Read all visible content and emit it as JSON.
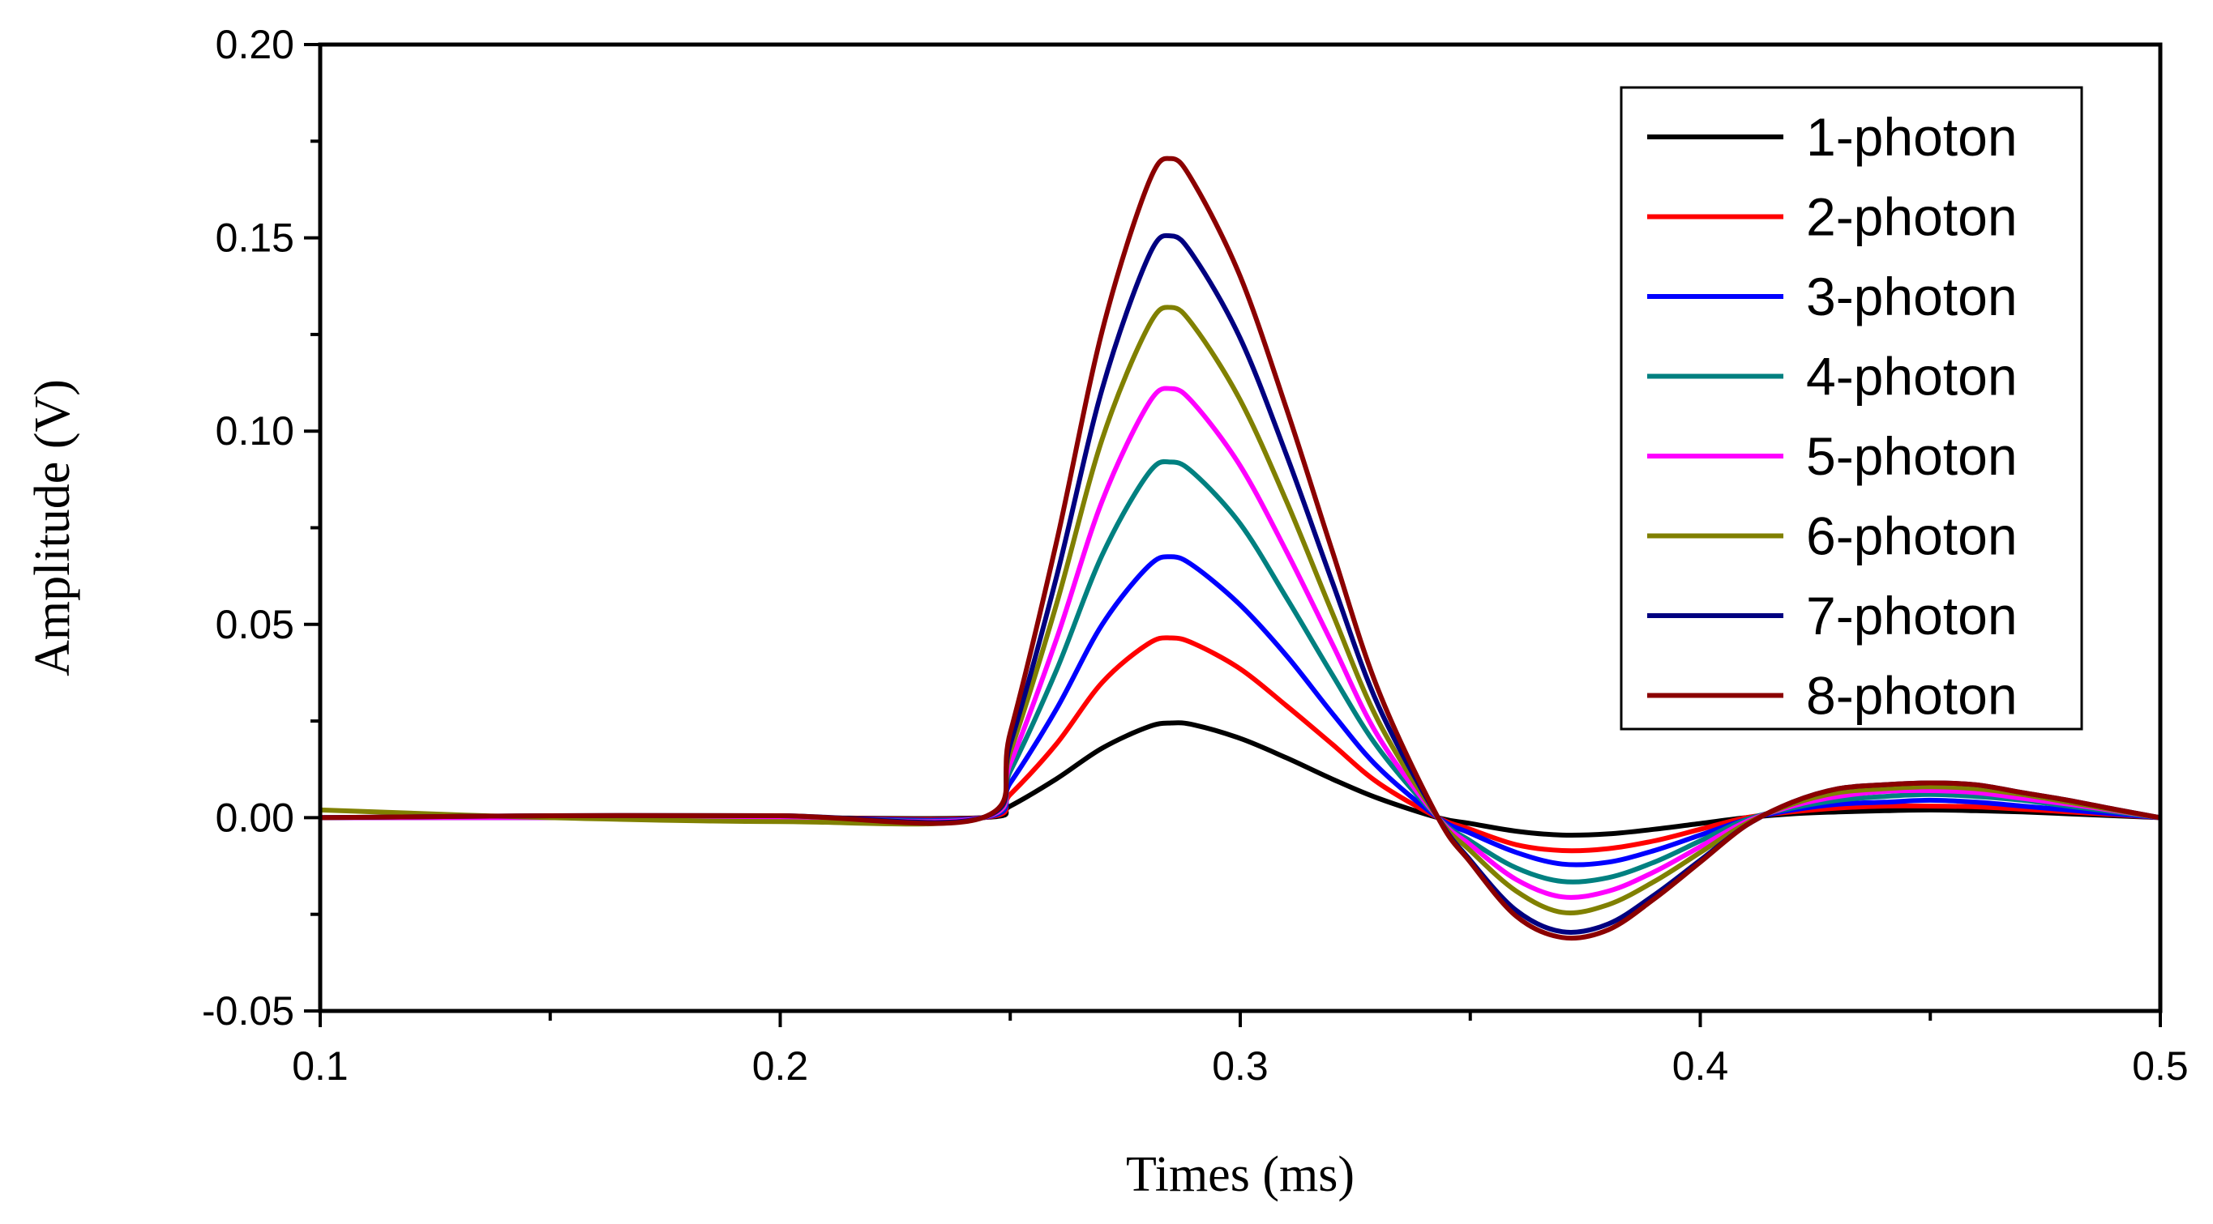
{
  "chart_data": {
    "type": "line",
    "title": "",
    "xlabel": "Times (ms)",
    "ylabel": "Amplitude (V)",
    "xlim": [
      0.1,
      0.5
    ],
    "ylim": [
      -0.05,
      0.2
    ],
    "xticks": [
      0.1,
      0.2,
      0.3,
      0.4,
      0.5
    ],
    "xtick_labels": [
      "0.1",
      "0.2",
      "0.3",
      "0.4",
      "0.5"
    ],
    "yticks": [
      -0.05,
      0.0,
      0.05,
      0.1,
      0.15,
      0.2
    ],
    "ytick_labels": [
      "-0.05",
      "0.00",
      "0.05",
      "0.10",
      "0.15",
      "0.20"
    ],
    "grid": false,
    "legend_position": "top-right",
    "x": [
      0.1,
      0.15,
      0.2,
      0.244,
      0.25,
      0.26,
      0.27,
      0.28,
      0.285,
      0.29,
      0.3,
      0.31,
      0.32,
      0.33,
      0.343,
      0.35,
      0.36,
      0.37,
      0.38,
      0.39,
      0.4,
      0.41,
      0.42,
      0.43,
      0.44,
      0.45,
      0.46,
      0.47,
      0.48,
      0.49,
      0.5
    ],
    "series": [
      {
        "name": "1-photon",
        "color": "#000000",
        "values": [
          0.0,
          0.0,
          0.0,
          0.0,
          0.003,
          0.01,
          0.018,
          0.0235,
          0.0245,
          0.024,
          0.0205,
          0.0155,
          0.01,
          0.005,
          0.0,
          -0.0015,
          -0.0035,
          -0.0045,
          -0.0042,
          -0.003,
          -0.0015,
          0.0,
          0.001,
          0.0015,
          0.0018,
          0.002,
          0.0018,
          0.0015,
          0.001,
          0.0005,
          0.0
        ]
      },
      {
        "name": "2-photon",
        "color": "#ff0000",
        "values": [
          0.0,
          0.0,
          0.0,
          0.0,
          0.006,
          0.019,
          0.035,
          0.045,
          0.0465,
          0.045,
          0.0385,
          0.029,
          0.019,
          0.009,
          0.0,
          -0.003,
          -0.007,
          -0.0085,
          -0.008,
          -0.006,
          -0.003,
          0.0,
          0.0015,
          0.0025,
          0.003,
          0.003,
          0.0028,
          0.0022,
          0.0015,
          0.0008,
          0.0
        ]
      },
      {
        "name": "3-photon",
        "color": "#0000ff",
        "values": [
          0.0,
          0.0,
          0.0,
          0.0,
          0.009,
          0.028,
          0.05,
          0.065,
          0.0675,
          0.065,
          0.055,
          0.042,
          0.027,
          0.013,
          0.0,
          -0.004,
          -0.009,
          -0.012,
          -0.0115,
          -0.0085,
          -0.0045,
          -0.0005,
          0.002,
          0.0035,
          0.004,
          0.0045,
          0.004,
          0.003,
          0.002,
          0.001,
          0.0
        ]
      },
      {
        "name": "4-photon",
        "color": "#008080",
        "values": [
          0.0,
          0.0,
          0.0,
          0.0,
          0.012,
          0.038,
          0.068,
          0.089,
          0.092,
          0.089,
          0.076,
          0.057,
          0.037,
          0.018,
          0.0,
          -0.006,
          -0.013,
          -0.0165,
          -0.0155,
          -0.0115,
          -0.006,
          -0.0005,
          0.0025,
          0.0045,
          0.0055,
          0.006,
          0.0055,
          0.0045,
          0.003,
          0.0015,
          0.0
        ]
      },
      {
        "name": "5-photon",
        "color": "#ff00ff",
        "values": [
          0.0,
          0.0,
          0.0,
          0.0,
          0.014,
          0.046,
          0.082,
          0.107,
          0.111,
          0.107,
          0.091,
          0.069,
          0.045,
          0.021,
          0.0,
          -0.007,
          -0.016,
          -0.0205,
          -0.019,
          -0.014,
          -0.0075,
          -0.001,
          0.003,
          0.0055,
          0.0068,
          0.007,
          0.0065,
          0.005,
          0.0035,
          0.0018,
          0.0
        ]
      },
      {
        "name": "6-photon",
        "color": "#808000",
        "values": [
          0.002,
          0.0,
          -0.001,
          0.0,
          0.017,
          0.055,
          0.098,
          0.127,
          0.132,
          0.127,
          0.108,
          0.082,
          0.053,
          0.025,
          0.0,
          -0.0085,
          -0.019,
          -0.0245,
          -0.0225,
          -0.0165,
          -0.009,
          -0.0015,
          0.0035,
          0.0065,
          0.0075,
          0.008,
          0.0075,
          0.006,
          0.004,
          0.002,
          0.0
        ]
      },
      {
        "name": "7-photon",
        "color": "#000080",
        "values": [
          0.0,
          0.0005,
          0.0005,
          0.0,
          0.019,
          0.062,
          0.111,
          0.145,
          0.1505,
          0.145,
          0.124,
          0.094,
          0.061,
          0.029,
          0.0,
          -0.011,
          -0.024,
          -0.0295,
          -0.0275,
          -0.02,
          -0.011,
          -0.002,
          0.004,
          0.0075,
          0.0085,
          0.009,
          0.0085,
          0.0065,
          0.0045,
          0.0022,
          0.0
        ]
      },
      {
        "name": "8-photon",
        "color": "#8b0000",
        "values": [
          0.0,
          0.0005,
          0.0005,
          0.0,
          0.022,
          0.071,
          0.126,
          0.164,
          0.1705,
          0.164,
          0.14,
          0.106,
          0.069,
          0.033,
          0.0,
          -0.0115,
          -0.0255,
          -0.031,
          -0.029,
          -0.021,
          -0.0115,
          -0.002,
          0.004,
          0.0075,
          0.0085,
          0.009,
          0.0085,
          0.0065,
          0.0045,
          0.0022,
          0.0
        ]
      }
    ]
  }
}
